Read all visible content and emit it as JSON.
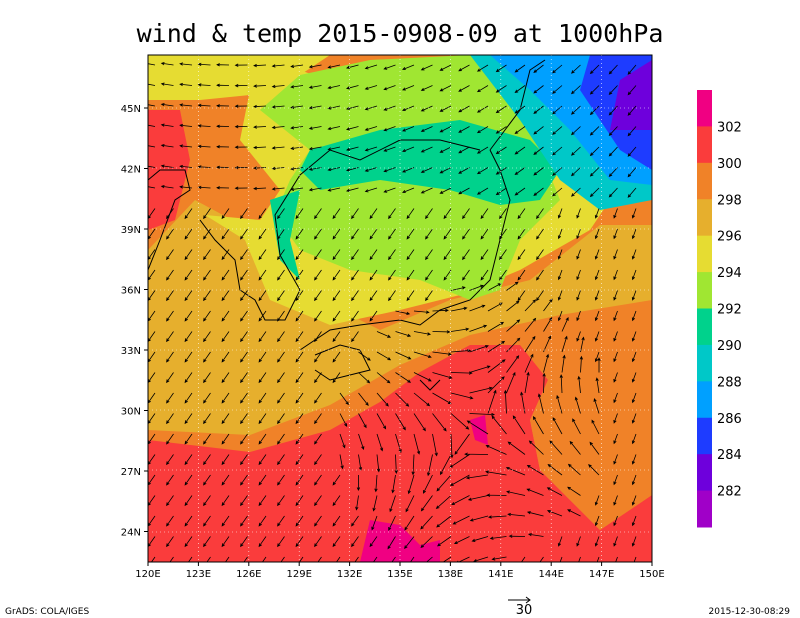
{
  "title": "wind & temp 2015-0908-09 at 1000hPa",
  "longitude_labels": [
    "120E",
    "123E",
    "126E",
    "129E",
    "132E",
    "135E",
    "138E",
    "141E",
    "144E",
    "147E",
    "150E"
  ],
  "latitude_labels": [
    "45N",
    "42N",
    "39N",
    "36N",
    "33N",
    "30N",
    "27N",
    "24N"
  ],
  "colorbar": {
    "labels": [
      "302",
      "300",
      "298",
      "296",
      "294",
      "292",
      "290",
      "288",
      "286",
      "284",
      "282"
    ]
  },
  "vector_reference": "30",
  "footer": {
    "left": "GrADS: COLA/IGES",
    "right": "2015-12-30-08:29"
  }
}
